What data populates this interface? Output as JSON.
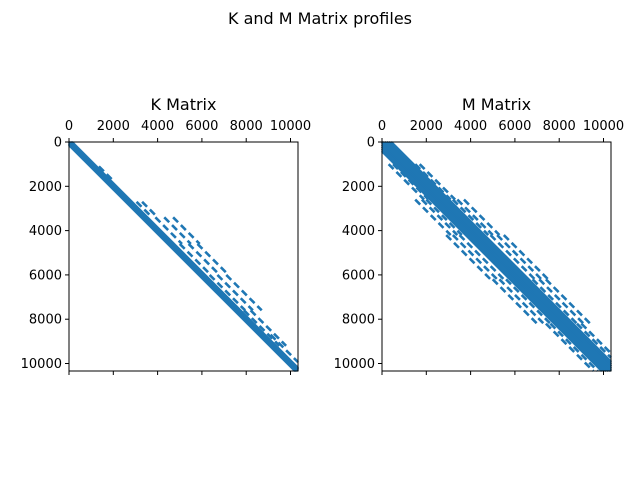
{
  "figure_title": "K and M Matrix profiles",
  "chart_data": [
    {
      "type": "spy",
      "title": "K Matrix",
      "matrix_size": 10338,
      "xticks": [
        0,
        2000,
        4000,
        6000,
        8000,
        10000
      ],
      "yticks": [
        0,
        2000,
        4000,
        6000,
        8000,
        10000
      ],
      "xtick_labels": [
        "0",
        "2000",
        "4000",
        "6000",
        "8000",
        "10000"
      ],
      "ytick_labels": [
        "0",
        "2000",
        "4000",
        "6000",
        "8000",
        "10000"
      ],
      "xlim": [
        0,
        10338
      ],
      "ylim": [
        10338,
        0
      ],
      "bands": [
        {
          "row_range": [
            0,
            10338
          ],
          "offsets": [
            -120,
            -60,
            0,
            60,
            120
          ]
        },
        {
          "row_range": [
            1100,
            1800
          ],
          "offsets": [
            250
          ]
        },
        {
          "row_range": [
            2700,
            3300
          ],
          "offsets": [
            350,
            600
          ]
        },
        {
          "row_range": [
            3400,
            4600
          ],
          "offsets": [
            500,
            900,
            1300
          ]
        },
        {
          "row_range": [
            4600,
            6000
          ],
          "offsets": [
            400,
            800,
            1200
          ]
        },
        {
          "row_range": [
            6000,
            7600
          ],
          "offsets": [
            350,
            700,
            1100
          ]
        },
        {
          "row_range": [
            7600,
            9200
          ],
          "offsets": [
            300,
            600
          ]
        },
        {
          "row_range": [
            8700,
            10000
          ],
          "offsets": [
            400
          ]
        }
      ],
      "color": "#1f77b4"
    },
    {
      "type": "spy",
      "title": "M Matrix",
      "matrix_size": 10338,
      "xticks": [
        0,
        2000,
        4000,
        6000,
        8000,
        10000
      ],
      "yticks": [
        0,
        2000,
        4000,
        6000,
        8000,
        10000
      ],
      "xtick_labels": [
        "0",
        "2000",
        "4000",
        "6000",
        "8000",
        "10000"
      ],
      "ytick_labels": [
        "0",
        "2000",
        "4000",
        "6000",
        "8000",
        "10000"
      ],
      "xlim": [
        0,
        10338
      ],
      "ylim": [
        10338,
        0
      ],
      "bands": [
        {
          "row_range": [
            0,
            10338
          ],
          "offsets": [
            -400,
            -300,
            -200,
            -100,
            0,
            100,
            200,
            300,
            400
          ]
        },
        {
          "row_range": [
            1000,
            2600
          ],
          "offsets": [
            -700,
            -500,
            500,
            700
          ]
        },
        {
          "row_range": [
            2600,
            4200
          ],
          "offsets": [
            -1100,
            -800,
            -600,
            600,
            800,
            1100
          ]
        },
        {
          "row_range": [
            4200,
            6200
          ],
          "offsets": [
            -1300,
            -1000,
            -700,
            700,
            1000,
            1300
          ]
        },
        {
          "row_range": [
            6200,
            8200
          ],
          "offsets": [
            -1200,
            -900,
            -600,
            600,
            900,
            1200
          ]
        },
        {
          "row_range": [
            8200,
            10338
          ],
          "offsets": [
            -800,
            -600,
            600,
            800
          ]
        }
      ],
      "color": "#1f77b4"
    }
  ]
}
